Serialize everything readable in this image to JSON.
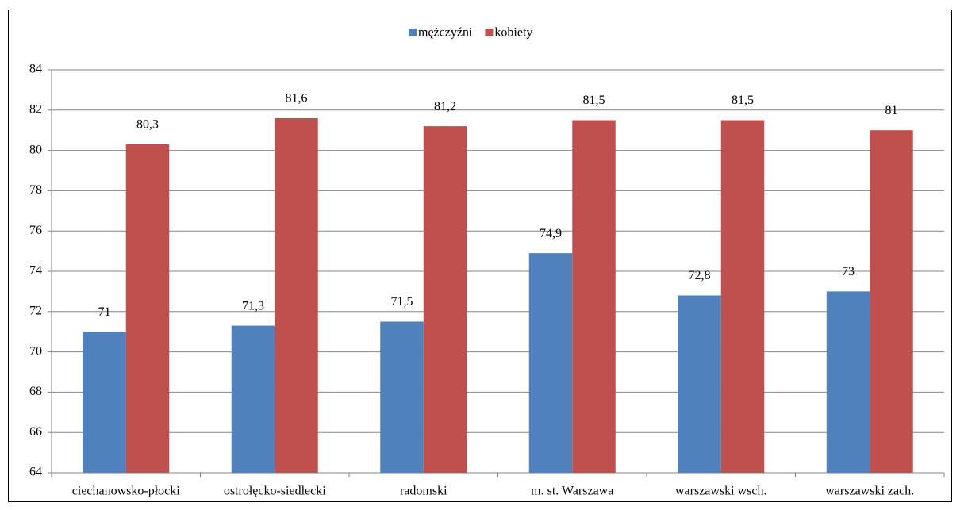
{
  "chart_data": {
    "type": "bar",
    "categories": [
      "ciechanowsko-płocki",
      "ostrołęcko-siedlecki",
      "radomski",
      "m. st. Warszawa",
      "warszawski wsch.",
      "warszawski zach."
    ],
    "series": [
      {
        "name": "mężczyźni",
        "color": "#4f81bd",
        "values": [
          71,
          71.3,
          71.5,
          74.9,
          72.8,
          73
        ],
        "value_labels": [
          "71",
          "71,3",
          "71,5",
          "74,9",
          "72,8",
          "73"
        ]
      },
      {
        "name": "kobiety",
        "color": "#c0504d",
        "values": [
          80.3,
          81.6,
          81.2,
          81.5,
          81.5,
          81
        ],
        "value_labels": [
          "80,3",
          "81,6",
          "81,2",
          "81,5",
          "81,5",
          "81"
        ]
      }
    ],
    "ylim": [
      64,
      84
    ],
    "yticks": [
      64,
      66,
      68,
      70,
      72,
      74,
      76,
      78,
      80,
      82,
      84
    ],
    "grid": true,
    "legend": "top"
  }
}
